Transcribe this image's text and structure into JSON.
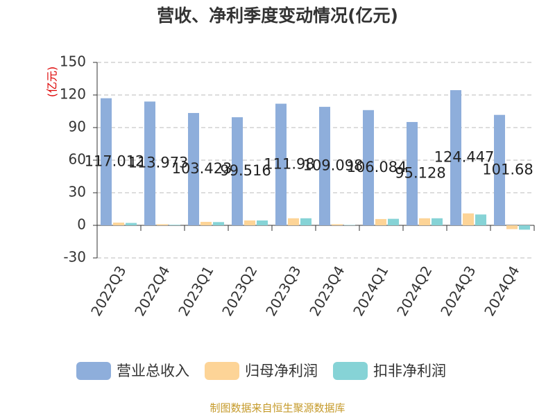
{
  "chart_data": {
    "type": "bar",
    "title": "营收、净利季度变动情况(亿元)",
    "y_label": "(亿元)",
    "categories": [
      "2022Q3",
      "2022Q4",
      "2023Q1",
      "2023Q2",
      "2023Q3",
      "2023Q4",
      "2024Q1",
      "2024Q2",
      "2024Q3",
      "2024Q4"
    ],
    "series": [
      {
        "name": "营业总收入",
        "color": "#8eaedb",
        "values": [
          117.012,
          113.973,
          103.423,
          99.516,
          111.98,
          109.098,
          106.084,
          95.128,
          124.447,
          101.68
        ]
      },
      {
        "name": "归母净利润",
        "color": "#fdd497",
        "values": [
          2.5,
          1.0,
          3.2,
          4.5,
          6.5,
          1.0,
          5.8,
          6.5,
          11.0,
          -3.5
        ]
      },
      {
        "name": "扣非净利润",
        "color": "#86d3d6",
        "values": [
          2.2,
          0.5,
          3.0,
          4.5,
          6.5,
          0.3,
          6.0,
          6.5,
          10.0,
          -4.0
        ]
      }
    ],
    "labeled_series": 0,
    "ylim": [
      -30,
      150
    ],
    "yticks": [
      -30,
      0,
      30,
      60,
      90,
      120,
      150
    ],
    "grid": true,
    "legend": "bottom",
    "source": "制图数据来自恒生聚源数据库"
  }
}
